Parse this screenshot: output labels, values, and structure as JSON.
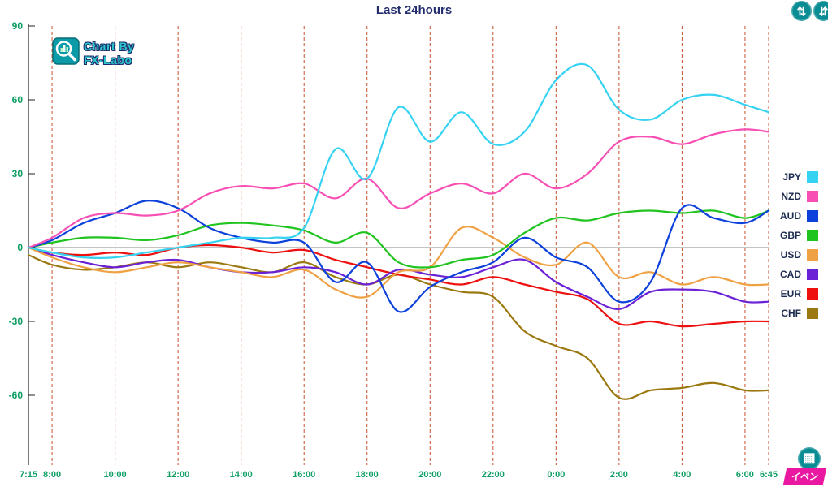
{
  "logo": {
    "line1": "Chart By",
    "line2": "FX-Labo"
  },
  "buttons": {
    "event_label": "イベン"
  },
  "icons": {
    "swap_glyph": "⇅",
    "adjust_glyph": "⇵",
    "calc_glyph": "▦"
  },
  "colors": {
    "title": "#232d6e",
    "axis": "#0d9e63",
    "grid": "#c8502e",
    "teal_button": "#0a8c94",
    "event_magenta": "#ea17a0",
    "logo_teal": "#2bc7cd",
    "logo_outline": "#1c2a6a",
    "zero_line": "#8a8a8a",
    "axis_line": "#222222"
  },
  "chart_data": {
    "type": "line",
    "title": "Last 24hours",
    "xlabel": "",
    "ylabel": "",
    "ylim": [
      -90,
      90
    ],
    "yticks": [
      90,
      60,
      30,
      0,
      -30,
      -60
    ],
    "grid": "vertical-dashed",
    "legend_position": "right",
    "x_tick_labels": [
      "7:15",
      "8:00",
      "10:00",
      "12:00",
      "14:00",
      "16:00",
      "18:00",
      "20:00",
      "22:00",
      "0:00",
      "2:00",
      "4:00",
      "6:00",
      "6:45"
    ],
    "x_tick_hours": [
      0,
      0.75,
      2.75,
      4.75,
      6.75,
      8.75,
      10.75,
      12.75,
      14.75,
      16.75,
      18.75,
      20.75,
      22.75,
      23.5
    ],
    "sample_hours": [
      0,
      0.75,
      1.75,
      2.75,
      3.75,
      4.75,
      5.75,
      6.75,
      7.75,
      8.75,
      9.75,
      10.75,
      11.75,
      12.75,
      13.75,
      14.75,
      15.75,
      16.75,
      17.75,
      18.75,
      19.75,
      20.75,
      21.75,
      22.75,
      23.5
    ],
    "series": [
      {
        "name": "JPY",
        "color": "#35d2f2",
        "values": [
          0,
          -2,
          -4,
          -4,
          -2,
          0,
          2,
          4,
          4,
          8,
          40,
          28,
          57,
          43,
          55,
          42,
          47,
          68,
          74,
          56,
          52,
          60,
          62,
          58,
          55
        ]
      },
      {
        "name": "NZD",
        "color": "#f74fb3",
        "values": [
          0,
          4,
          12,
          14,
          13,
          15,
          22,
          25,
          24,
          26,
          20,
          28,
          16,
          22,
          26,
          22,
          30,
          24,
          30,
          43,
          45,
          42,
          46,
          48,
          47
        ]
      },
      {
        "name": "AUD",
        "color": "#0c41db",
        "values": [
          0,
          3,
          10,
          14,
          19,
          16,
          8,
          4,
          2,
          2,
          -14,
          -6,
          -26,
          -16,
          -10,
          -6,
          4,
          -4,
          -8,
          -22,
          -14,
          16,
          12,
          10,
          15
        ]
      },
      {
        "name": "GBP",
        "color": "#1fc41f",
        "values": [
          0,
          2,
          4,
          4,
          3,
          5,
          9,
          10,
          9,
          7,
          2,
          6,
          -6,
          -8,
          -5,
          -3,
          6,
          12,
          11,
          14,
          15,
          14,
          15,
          12,
          15
        ]
      },
      {
        "name": "USD",
        "color": "#efa143",
        "values": [
          0,
          -4,
          -8,
          -10,
          -8,
          -6,
          -8,
          -10,
          -12,
          -9,
          -17,
          -20,
          -10,
          -8,
          8,
          4,
          -4,
          -7,
          2,
          -12,
          -10,
          -15,
          -12,
          -15,
          -15
        ]
      },
      {
        "name": "CAD",
        "color": "#6b22d6",
        "values": [
          0,
          -3,
          -6,
          -8,
          -6,
          -5,
          -8,
          -10,
          -10,
          -8,
          -10,
          -15,
          -9,
          -11,
          -12,
          -8,
          -5,
          -14,
          -20,
          -25,
          -18,
          -17,
          -18,
          -22,
          -22
        ]
      },
      {
        "name": "EUR",
        "color": "#ee0f0f",
        "values": [
          0,
          -2,
          -3,
          -2,
          -3,
          0,
          1,
          0,
          -2,
          -1,
          -5,
          -8,
          -11,
          -13,
          -15,
          -12,
          -15,
          -18,
          -21,
          -31,
          -30,
          -32,
          -31,
          -30,
          -30
        ]
      },
      {
        "name": "CHF",
        "color": "#9b7910",
        "values": [
          -3,
          -7,
          -9,
          -8,
          -6,
          -8,
          -6,
          -8,
          -10,
          -6,
          -12,
          -15,
          -11,
          -15,
          -18,
          -20,
          -34,
          -40,
          -45,
          -61,
          -58,
          -57,
          -55,
          -58,
          -58
        ]
      }
    ]
  }
}
